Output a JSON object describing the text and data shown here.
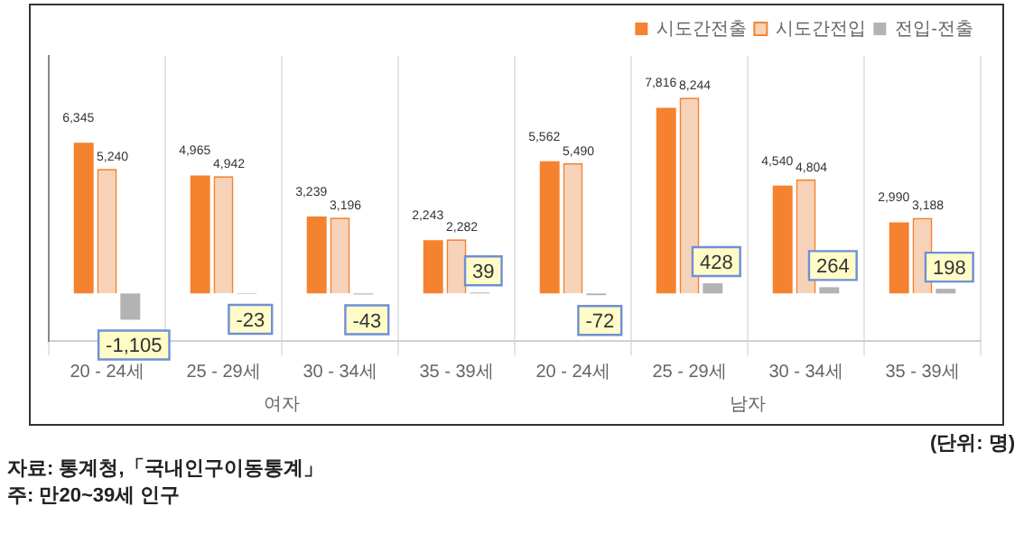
{
  "chart_data": {
    "type": "bar",
    "categories": [
      "20 - 24세",
      "25 - 29세",
      "30 - 34세",
      "35 - 39세",
      "20 - 24세",
      "25 - 29세",
      "30 - 34세",
      "35 - 39세"
    ],
    "series": [
      {
        "name": "시도간전출",
        "color": "#f5822f",
        "values": [
          6345,
          4965,
          3239,
          2243,
          5562,
          7816,
          4540,
          2990
        ],
        "value_labels": [
          "6,345",
          "4,965",
          "3,239",
          "2,243",
          "5,562",
          "7,816",
          "4,540",
          "2,990"
        ]
      },
      {
        "name": "시도간전입",
        "color": "#f6d3b8",
        "values": [
          5240,
          4942,
          3196,
          2282,
          5490,
          8244,
          4804,
          3188
        ],
        "value_labels": [
          "5,240",
          "4,942",
          "3,196",
          "2,282",
          "5,490",
          "8,244",
          "4,804",
          "3,188"
        ]
      },
      {
        "name": "전입-전출",
        "color": "#b3b3b3",
        "values": [
          -1105,
          -23,
          -43,
          39,
          -72,
          428,
          264,
          198
        ],
        "value_labels": [
          "-1,105",
          "-23",
          "-43",
          "39",
          "-72",
          "428",
          "264",
          "198"
        ]
      }
    ],
    "legend": "top right",
    "grid": "x",
    "annotations": [
      "여자",
      "남자",
      "(단위: 명)",
      "자료: 통계청,「국내인구이동통계」",
      "주: 만20~39세 인구"
    ]
  }
}
